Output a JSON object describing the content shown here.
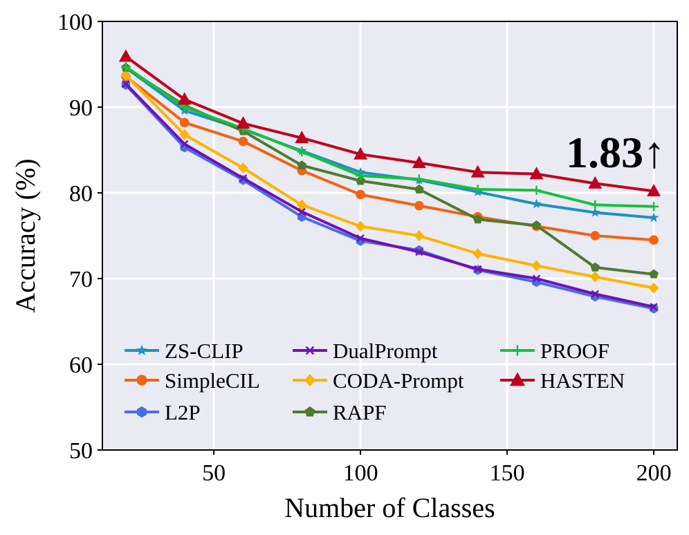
{
  "chart_data": {
    "type": "line",
    "xlabel": "Number of Classes",
    "ylabel": "Accuracy (%)",
    "xlim": [
      12,
      208
    ],
    "ylim": [
      50,
      100
    ],
    "xticks": [
      50,
      100,
      150,
      200
    ],
    "yticks": [
      50,
      60,
      70,
      80,
      90,
      100
    ],
    "grid": true,
    "background": "#eaeaf2",
    "legend_placement": "lower-left",
    "annotation": "1.83↑",
    "x": [
      20,
      40,
      60,
      80,
      100,
      120,
      140,
      160,
      180,
      200
    ],
    "series": [
      {
        "name": "ZS-CLIP",
        "color": "#1f8fc4",
        "marker": "star",
        "values": [
          94.6,
          89.6,
          87.4,
          84.9,
          82.4,
          81.5,
          80.1,
          78.7,
          77.7,
          77.1
        ]
      },
      {
        "name": "SimpleCIL",
        "color": "#f06414",
        "marker": "circle",
        "values": [
          93.6,
          88.2,
          86.0,
          82.6,
          79.8,
          78.5,
          77.2,
          76.1,
          75.0,
          74.5
        ]
      },
      {
        "name": "L2P",
        "color": "#4a6ee0",
        "marker": "hexagon",
        "values": [
          92.6,
          85.3,
          81.5,
          77.2,
          74.4,
          73.3,
          71.0,
          69.6,
          67.9,
          66.5
        ]
      },
      {
        "name": "DualPrompt",
        "color": "#7010b8",
        "marker": "x",
        "values": [
          92.7,
          85.7,
          81.7,
          77.8,
          74.7,
          73.1,
          71.1,
          70.0,
          68.2,
          66.7
        ]
      },
      {
        "name": "CODA-Prompt",
        "color": "#fbb400",
        "marker": "diamond",
        "values": [
          93.7,
          86.8,
          82.9,
          78.6,
          76.1,
          75.0,
          72.9,
          71.5,
          70.2,
          68.9
        ]
      },
      {
        "name": "RAPF",
        "color": "#4f7a30",
        "marker": "pentagon",
        "values": [
          94.6,
          90.2,
          87.2,
          83.2,
          81.4,
          80.4,
          76.9,
          76.2,
          71.3,
          70.5
        ]
      },
      {
        "name": "PROOF",
        "color": "#18c040",
        "marker": "plus",
        "values": [
          94.7,
          90.0,
          87.5,
          84.8,
          82.0,
          81.6,
          80.4,
          80.3,
          78.6,
          78.4
        ]
      },
      {
        "name": "HASTEN",
        "color": "#c0001f",
        "marker": "triangle",
        "values": [
          95.9,
          90.9,
          88.1,
          86.4,
          84.5,
          83.5,
          82.4,
          82.2,
          81.1,
          80.2
        ]
      }
    ],
    "legend_columns": [
      [
        "ZS-CLIP",
        "SimpleCIL",
        "L2P"
      ],
      [
        "DualPrompt",
        "CODA-Prompt",
        "RAPF"
      ],
      [
        "PROOF",
        "HASTEN"
      ]
    ]
  }
}
